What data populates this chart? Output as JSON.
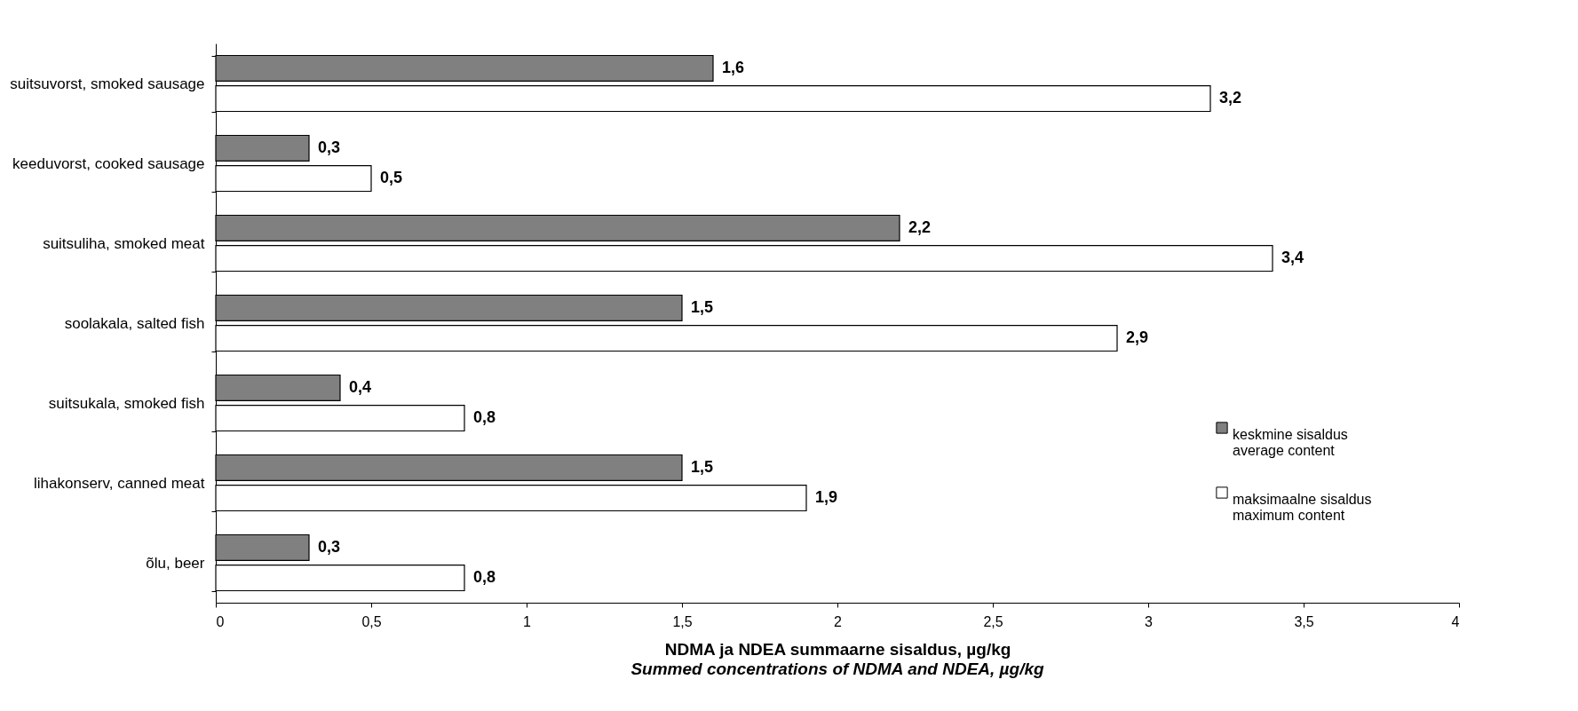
{
  "chart_data": {
    "type": "bar",
    "orientation": "horizontal",
    "categories": [
      "suitsuvorst, smoked sausage",
      "keeduvorst, cooked sausage",
      "suitsuliha, smoked meat",
      "soolakala, salted fish",
      "suitsukala, smoked fish",
      "lihakonserv, canned meat",
      "õlu, beer"
    ],
    "series": [
      {
        "name": "keskmine sisaldus\naverage content",
        "color": "#808080",
        "values": [
          1.6,
          0.3,
          2.2,
          1.5,
          0.4,
          1.5,
          0.3
        ],
        "value_labels": [
          "1,6",
          "0,3",
          "2,2",
          "1,5",
          "0,4",
          "1,5",
          "0,3"
        ]
      },
      {
        "name": "maksimaalne sisaldus\nmaximum content",
        "color": "#ffffff",
        "values": [
          3.2,
          0.5,
          3.4,
          2.9,
          0.8,
          1.9,
          0.8
        ],
        "value_labels": [
          "3,2",
          "0,5",
          "3,4",
          "2,9",
          "0,8",
          "1,9",
          "0,8"
        ]
      }
    ],
    "xlim": [
      0,
      4
    ],
    "xticks": [
      0,
      {
        "value": 0.5,
        "label": "0,5"
      },
      1,
      {
        "value": 1.5,
        "label": "1,5"
      },
      2,
      {
        "value": 2.5,
        "label": "2,5"
      },
      3,
      {
        "value": 3.5,
        "label": "3,5"
      },
      4
    ],
    "xlabel": "NDMA ja NDEA summaarne sisaldus, µg/kg",
    "annotations": [
      "Summed concentrations of NDMA and NDEA, µg/kg"
    ],
    "grid": false,
    "legend": "right"
  }
}
